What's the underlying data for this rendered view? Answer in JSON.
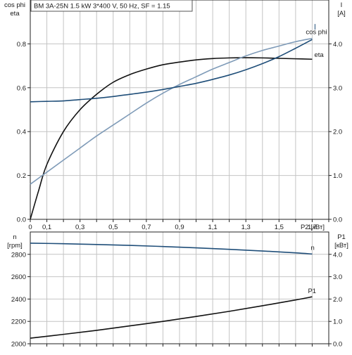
{
  "title": "BM 3A-25N   1.5 kW   3*400 V, 50 Hz, SF = 1.15",
  "chart_data": [
    {
      "type": "line",
      "panel": "efficiency",
      "title": "BM 3A-25N   1.5 kW   3*400 V, 50 Hz, SF = 1.15",
      "left_axis_label": [
        "cos phi",
        "eta"
      ],
      "right_axis_label": [
        "I",
        "[A]"
      ],
      "xlabel": "P2 [кВт]",
      "xlim": [
        0,
        1.8
      ],
      "x_ticks": [
        "0",
        "0,1",
        "0,3",
        "0,5",
        "0,7",
        "0,9",
        "1,1",
        "1,3",
        "1,5",
        "1,7"
      ],
      "ylim_left": [
        0,
        1.0
      ],
      "y_ticks_left": [
        "0.0",
        "0.2",
        "0.4",
        "0.6",
        "0.8"
      ],
      "ylim_right": [
        0,
        5.0
      ],
      "y_ticks_right": [
        "0.0",
        "1.0",
        "2.0",
        "3.0",
        "4.0"
      ],
      "grid": true,
      "series": [
        {
          "name": "eta",
          "axis": "left",
          "color": "#111111",
          "x": [
            0.0,
            0.05,
            0.1,
            0.2,
            0.3,
            0.4,
            0.5,
            0.6,
            0.7,
            0.8,
            0.9,
            1.0,
            1.1,
            1.2,
            1.3,
            1.4,
            1.5,
            1.6,
            1.7
          ],
          "y": [
            0.0,
            0.13,
            0.25,
            0.4,
            0.5,
            0.57,
            0.625,
            0.66,
            0.685,
            0.705,
            0.717,
            0.727,
            0.733,
            0.736,
            0.737,
            0.736,
            0.734,
            0.732,
            0.73
          ]
        },
        {
          "name": "cos phi",
          "axis": "left",
          "color": "#7f9bb8",
          "x": [
            0.0,
            0.1,
            0.2,
            0.3,
            0.4,
            0.5,
            0.6,
            0.7,
            0.8,
            0.9,
            1.0,
            1.1,
            1.2,
            1.3,
            1.4,
            1.5,
            1.6,
            1.7
          ],
          "y": [
            0.16,
            0.215,
            0.27,
            0.325,
            0.38,
            0.43,
            0.48,
            0.53,
            0.575,
            0.615,
            0.65,
            0.685,
            0.715,
            0.745,
            0.77,
            0.79,
            0.81,
            0.825
          ]
        },
        {
          "name": "I",
          "axis": "right",
          "color": "#1f4e79",
          "x": [
            0.0,
            0.1,
            0.2,
            0.3,
            0.4,
            0.5,
            0.6,
            0.7,
            0.8,
            0.9,
            1.0,
            1.1,
            1.2,
            1.3,
            1.4,
            1.5,
            1.6,
            1.7
          ],
          "y": [
            2.68,
            2.69,
            2.7,
            2.73,
            2.76,
            2.8,
            2.85,
            2.9,
            2.96,
            3.03,
            3.1,
            3.19,
            3.29,
            3.41,
            3.55,
            3.71,
            3.9,
            4.1
          ]
        }
      ]
    },
    {
      "type": "line",
      "panel": "speed-power",
      "left_axis_label": [
        "n",
        "[rpm]"
      ],
      "right_axis_label": [
        "P1",
        "[кВт]"
      ],
      "xlim": [
        0,
        1.8
      ],
      "ylim_left": [
        2000,
        3000
      ],
      "y_ticks_left": [
        "2000",
        "2200",
        "2400",
        "2600",
        "2800"
      ],
      "ylim_right": [
        0,
        5.0
      ],
      "y_ticks_right": [
        "0.0",
        "1.0",
        "2.0",
        "3.0",
        "4.0"
      ],
      "grid": true,
      "series": [
        {
          "name": "n",
          "axis": "left",
          "color": "#1f4e79",
          "x": [
            0.0,
            0.2,
            0.4,
            0.6,
            0.8,
            1.0,
            1.2,
            1.4,
            1.6,
            1.7
          ],
          "y": [
            2900,
            2895,
            2888,
            2880,
            2870,
            2858,
            2845,
            2830,
            2813,
            2803
          ]
        },
        {
          "name": "P1",
          "axis": "right",
          "color": "#111111",
          "x": [
            0.0,
            0.2,
            0.4,
            0.6,
            0.8,
            1.0,
            1.2,
            1.4,
            1.6,
            1.7
          ],
          "y": [
            0.25,
            0.42,
            0.6,
            0.8,
            1.0,
            1.22,
            1.45,
            1.7,
            1.96,
            2.1
          ]
        }
      ]
    }
  ]
}
